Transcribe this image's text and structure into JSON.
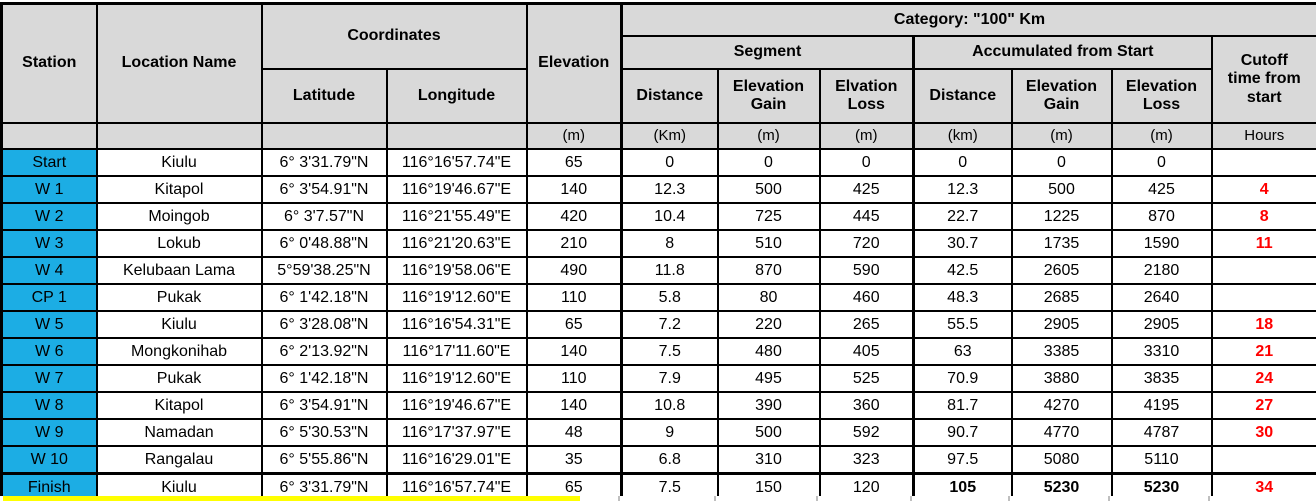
{
  "header": {
    "station": "Station",
    "location_name": "Location Name",
    "coordinates": "Coordinates",
    "latitude": "Latitude",
    "longitude": "Longitude",
    "elevation": "Elevation",
    "category": "Category: \"100\" Km",
    "segment": "Segment",
    "accumulated": "Accumulated from Start",
    "cutoff": "Cutoff time from start",
    "segment_columns": [
      "Distance",
      "Elevation Gain",
      "Elvation Loss"
    ],
    "accumulated_columns": [
      "Distance",
      "Elevation Gain",
      "Elevation Loss"
    ],
    "units": [
      "",
      "",
      "",
      "",
      "(m)",
      "(Km)",
      "(m)",
      "(m)",
      "(km)",
      "(m)",
      "(m)",
      "Hours"
    ]
  },
  "rows": [
    {
      "station": "Start",
      "location_name": "Kiulu",
      "latitude": "6° 3'31.79\"N",
      "longitude": "116°16'57.74\"E",
      "elevation": "65",
      "segment": {
        "distance": "0",
        "elevation_gain": "0",
        "elevation_loss": "0"
      },
      "accumulated": {
        "distance": "0",
        "elevation_gain": "0",
        "elevation_loss": "0"
      },
      "cutoff_hours": "",
      "finish_emphasis": false
    },
    {
      "station": "W 1",
      "location_name": "Kitapol",
      "latitude": "6° 3'54.91\"N",
      "longitude": "116°19'46.67\"E",
      "elevation": "140",
      "segment": {
        "distance": "12.3",
        "elevation_gain": "500",
        "elevation_loss": "425"
      },
      "accumulated": {
        "distance": "12.3",
        "elevation_gain": "500",
        "elevation_loss": "425"
      },
      "cutoff_hours": "4",
      "finish_emphasis": false
    },
    {
      "station": "W 2",
      "location_name": "Moingob",
      "latitude": "6° 3'7.57\"N",
      "longitude": "116°21'55.49\"E",
      "elevation": "420",
      "segment": {
        "distance": "10.4",
        "elevation_gain": "725",
        "elevation_loss": "445"
      },
      "accumulated": {
        "distance": "22.7",
        "elevation_gain": "1225",
        "elevation_loss": "870"
      },
      "cutoff_hours": "8",
      "finish_emphasis": false
    },
    {
      "station": "W 3",
      "location_name": "Lokub",
      "latitude": "6° 0'48.88\"N",
      "longitude": "116°21'20.63\"E",
      "elevation": "210",
      "segment": {
        "distance": "8",
        "elevation_gain": "510",
        "elevation_loss": "720"
      },
      "accumulated": {
        "distance": "30.7",
        "elevation_gain": "1735",
        "elevation_loss": "1590"
      },
      "cutoff_hours": "11",
      "finish_emphasis": false
    },
    {
      "station": "W 4",
      "location_name": "Kelubaan Lama",
      "latitude": "5°59'38.25\"N",
      "longitude": "116°19'58.06\"E",
      "elevation": "490",
      "segment": {
        "distance": "11.8",
        "elevation_gain": "870",
        "elevation_loss": "590"
      },
      "accumulated": {
        "distance": "42.5",
        "elevation_gain": "2605",
        "elevation_loss": "2180"
      },
      "cutoff_hours": "",
      "finish_emphasis": false
    },
    {
      "station": "CP 1",
      "location_name": "Pukak",
      "latitude": "6° 1'42.18\"N",
      "longitude": "116°19'12.60\"E",
      "elevation": "110",
      "segment": {
        "distance": "5.8",
        "elevation_gain": "80",
        "elevation_loss": "460"
      },
      "accumulated": {
        "distance": "48.3",
        "elevation_gain": "2685",
        "elevation_loss": "2640"
      },
      "cutoff_hours": "",
      "finish_emphasis": false
    },
    {
      "station": "W 5",
      "location_name": "Kiulu",
      "latitude": "6° 3'28.08\"N",
      "longitude": "116°16'54.31\"E",
      "elevation": "65",
      "segment": {
        "distance": "7.2",
        "elevation_gain": "220",
        "elevation_loss": "265"
      },
      "accumulated": {
        "distance": "55.5",
        "elevation_gain": "2905",
        "elevation_loss": "2905"
      },
      "cutoff_hours": "18",
      "finish_emphasis": false
    },
    {
      "station": "W 6",
      "location_name": "Mongkonihab",
      "latitude": "6° 2'13.92\"N",
      "longitude": "116°17'11.60\"E",
      "elevation": "140",
      "segment": {
        "distance": "7.5",
        "elevation_gain": "480",
        "elevation_loss": "405"
      },
      "accumulated": {
        "distance": "63",
        "elevation_gain": "3385",
        "elevation_loss": "3310"
      },
      "cutoff_hours": "21",
      "finish_emphasis": false
    },
    {
      "station": "W 7",
      "location_name": "Pukak",
      "latitude": "6° 1'42.18\"N",
      "longitude": "116°19'12.60\"E",
      "elevation": "110",
      "segment": {
        "distance": "7.9",
        "elevation_gain": "495",
        "elevation_loss": "525"
      },
      "accumulated": {
        "distance": "70.9",
        "elevation_gain": "3880",
        "elevation_loss": "3835"
      },
      "cutoff_hours": "24",
      "finish_emphasis": false
    },
    {
      "station": "W 8",
      "location_name": "Kitapol",
      "latitude": "6° 3'54.91\"N",
      "longitude": "116°19'46.67\"E",
      "elevation": "140",
      "segment": {
        "distance": "10.8",
        "elevation_gain": "390",
        "elevation_loss": "360"
      },
      "accumulated": {
        "distance": "81.7",
        "elevation_gain": "4270",
        "elevation_loss": "4195"
      },
      "cutoff_hours": "27",
      "finish_emphasis": false
    },
    {
      "station": "W 9",
      "location_name": "Namadan",
      "latitude": "6° 5'30.53\"N",
      "longitude": "116°17'37.97\"E",
      "elevation": "48",
      "segment": {
        "distance": "9",
        "elevation_gain": "500",
        "elevation_loss": "592"
      },
      "accumulated": {
        "distance": "90.7",
        "elevation_gain": "4770",
        "elevation_loss": "4787"
      },
      "cutoff_hours": "30",
      "finish_emphasis": false
    },
    {
      "station": "W 10",
      "location_name": "Rangalau",
      "latitude": "6° 5'55.86\"N",
      "longitude": "116°16'29.01\"E",
      "elevation": "35",
      "segment": {
        "distance": "6.8",
        "elevation_gain": "310",
        "elevation_loss": "323"
      },
      "accumulated": {
        "distance": "97.5",
        "elevation_gain": "5080",
        "elevation_loss": "5110"
      },
      "cutoff_hours": "",
      "finish_emphasis": false
    },
    {
      "station": "Finish",
      "location_name": "Kiulu",
      "latitude": "6° 3'31.79\"N",
      "longitude": "116°16'57.74\"E",
      "elevation": "65",
      "segment": {
        "distance": "7.5",
        "elevation_gain": "150",
        "elevation_loss": "120"
      },
      "accumulated": {
        "distance": "105",
        "elevation_gain": "5230",
        "elevation_loss": "5230"
      },
      "cutoff_hours": "34",
      "finish_emphasis": true
    }
  ],
  "colors": {
    "header_bg": "#D9D9D9",
    "station_bg": "#1CADE4",
    "cutoff_text": "#FF0000",
    "border": "#000000",
    "next_row_highlight": "#FFFF00"
  }
}
